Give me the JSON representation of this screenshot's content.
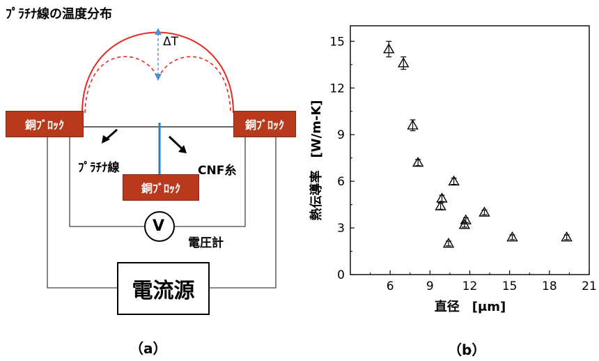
{
  "diagram": {
    "title": "ﾌﾟﾗﾁﾅ線の温度分布",
    "delta_label": "ΔT",
    "copper_block_label": "銅ﾌﾞﾛｯｸ",
    "platinum_wire_label": "ﾌﾟﾗﾁﾅ線",
    "cnf_label": "CNF糸",
    "voltmeter_symbol": "V",
    "voltmeter_label": "電圧計",
    "current_source_label": "電流源",
    "panel_label": "（a）",
    "colors": {
      "block": "#b8391c",
      "temperature_curve": "#e8281e",
      "cnf_wire": "#1f7fd0",
      "delta_arrow": "#4a90d9"
    }
  },
  "chart": {
    "panel_label": "（b）",
    "chart_data": {
      "type": "scatter",
      "title": "",
      "xlabel": "直径　[μm]",
      "ylabel": "熱伝導率　[W/m-K]",
      "xlim": [
        3,
        21
      ],
      "ylim": [
        0,
        16
      ],
      "xticks": [
        6,
        9,
        12,
        15,
        18,
        21
      ],
      "yticks": [
        0,
        3,
        6,
        9,
        12,
        15
      ],
      "marker": "triangle-open",
      "grid": false,
      "points": [
        {
          "x": 5.9,
          "y": 14.5,
          "err": 0.5
        },
        {
          "x": 7.0,
          "y": 13.6,
          "err": 0.4
        },
        {
          "x": 7.7,
          "y": 9.6,
          "err": 0.35
        },
        {
          "x": 8.1,
          "y": 7.2,
          "err": 0.2
        },
        {
          "x": 9.8,
          "y": 4.4,
          "err": 0.2
        },
        {
          "x": 9.9,
          "y": 4.9,
          "err": 0.2
        },
        {
          "x": 10.4,
          "y": 2.0,
          "err": 0.15
        },
        {
          "x": 10.8,
          "y": 6.0,
          "err": 0.2
        },
        {
          "x": 11.6,
          "y": 3.2,
          "err": 0.15
        },
        {
          "x": 11.7,
          "y": 3.5,
          "err": 0.15
        },
        {
          "x": 13.1,
          "y": 4.0,
          "err": 0.15
        },
        {
          "x": 15.2,
          "y": 2.4,
          "err": 0.15
        },
        {
          "x": 19.3,
          "y": 2.4,
          "err": 0.15
        }
      ]
    }
  }
}
